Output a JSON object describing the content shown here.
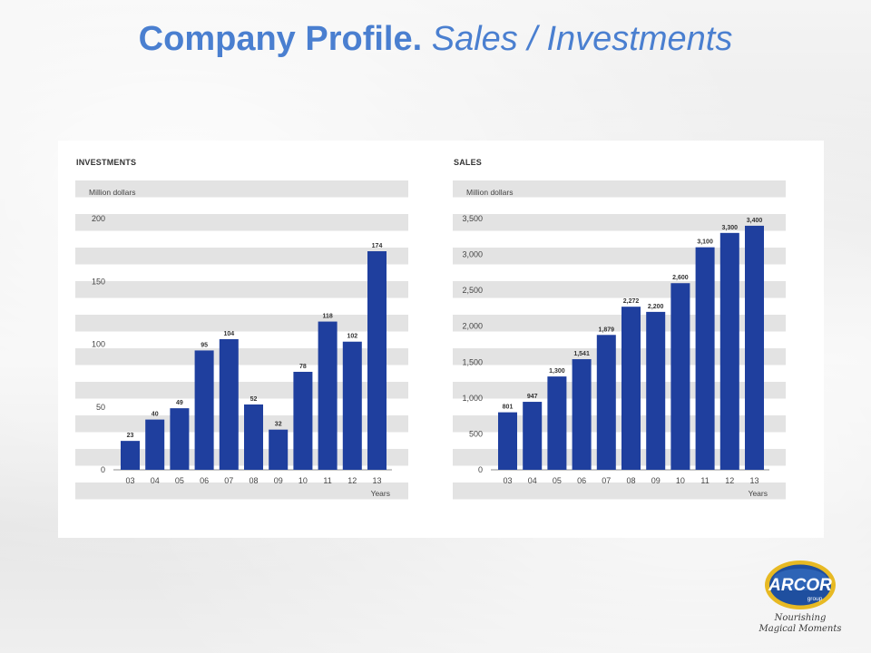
{
  "page": {
    "title_bold": "Company Profile.",
    "title_rest": "Sales / Investments"
  },
  "logo": {
    "brand": "ARCOR",
    "sub": "group",
    "tagline_1": "Nourishing",
    "tagline_2": "Magical Moments"
  },
  "colors": {
    "bar": "#1f3f9e",
    "title": "#4a7fd0",
    "band": "#e3e3e3"
  },
  "chart_data": [
    {
      "id": "investments",
      "type": "bar",
      "title": "INVESTMENTS",
      "ylabel": "Million dollars",
      "xlabel": "Years",
      "categories": [
        "03",
        "04",
        "05",
        "06",
        "07",
        "08",
        "09",
        "10",
        "11",
        "12",
        "13"
      ],
      "values": [
        23,
        40,
        49,
        95,
        104,
        52,
        32,
        78,
        118,
        102,
        174
      ],
      "data_labels": [
        "23",
        "40",
        "49",
        "95",
        "104",
        "52",
        "32",
        "78",
        "118",
        "102",
        "174"
      ],
      "ylim": [
        0,
        200
      ],
      "yticks": [
        0,
        50,
        100,
        150,
        200
      ],
      "ytick_labels": [
        "0",
        "50",
        "100",
        "150",
        "200"
      ],
      "grid": "horizontal bands",
      "legend": "none"
    },
    {
      "id": "sales",
      "type": "bar",
      "title": "SALES",
      "ylabel": "Million dollars",
      "xlabel": "Years",
      "categories": [
        "03",
        "04",
        "05",
        "06",
        "07",
        "08",
        "09",
        "10",
        "11",
        "12",
        "13"
      ],
      "values": [
        801,
        947,
        1300,
        1541,
        1879,
        2272,
        2200,
        2600,
        3100,
        3300,
        3400
      ],
      "data_labels": [
        "801",
        "947",
        "1,300",
        "1,541",
        "1,879",
        "2,272",
        "2,200",
        "2,600",
        "3,100",
        "3,300",
        "3,400"
      ],
      "ylim": [
        0,
        3500
      ],
      "yticks": [
        0,
        500,
        1000,
        1500,
        2000,
        2500,
        3000,
        3500
      ],
      "ytick_labels": [
        "0",
        "500",
        "1,000",
        "1,500",
        "2,000",
        "2,500",
        "3,000",
        "3,500"
      ],
      "grid": "horizontal bands",
      "legend": "none"
    }
  ]
}
